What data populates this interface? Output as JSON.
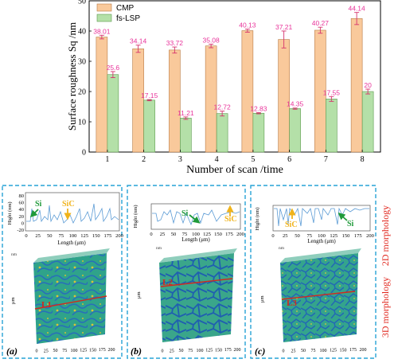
{
  "chart_data": {
    "type": "bar",
    "xlabel": "Number of scan /time",
    "ylabel": "Surface roughness Sq /nm",
    "ylim": [
      0,
      50
    ],
    "yticks": [
      0,
      10,
      20,
      30,
      40,
      50
    ],
    "categories": [
      "1",
      "2",
      "3",
      "4",
      "5",
      "6",
      "7",
      "8"
    ],
    "series": [
      {
        "name": "CMP",
        "values": [
          38.01,
          34.14,
          33.72,
          35.08,
          40.13,
          37.21,
          40.27,
          44.14
        ],
        "labels": [
          "38.01",
          "34.14",
          "33.72",
          "35.08",
          "40.13",
          "37.21",
          "40.27",
          "44.14"
        ],
        "errors": [
          0.6,
          1.2,
          1.0,
          0.6,
          0.5,
          2.8,
          1.0,
          2.0
        ],
        "color": "#f9c99b"
      },
      {
        "name": "fs-LSP",
        "values": [
          25.6,
          17.15,
          11.21,
          12.72,
          12.83,
          14.35,
          17.55,
          20
        ],
        "labels": [
          "25.6",
          "17.15",
          "11.21",
          "12.72",
          "12.83",
          "14.35",
          "17.55",
          "20"
        ],
        "errors": [
          1.0,
          0.2,
          0.4,
          0.8,
          0.2,
          0.2,
          0.8,
          0.8
        ],
        "color": "#b4e0a8"
      }
    ],
    "label_color": "#e8339a",
    "legend": "top-left"
  },
  "panels": [
    {
      "tag": "(a)",
      "line": "L1",
      "annot_green": "Si",
      "annot_yellow": "SiC",
      "plot_ylabel": "Hight (nm)",
      "plot_xlabel": "Length (μm)",
      "yticks": [
        "80",
        "60",
        "40",
        "20",
        "0",
        "-20"
      ],
      "xticks": [
        "0",
        "25",
        "50",
        "75",
        "100",
        "125",
        "150",
        "175",
        "200"
      ],
      "unit_nm": "nm",
      "axis_um": "μm"
    },
    {
      "tag": "(b)",
      "line": "L2",
      "annot_green": "Si",
      "annot_yellow": "SiC",
      "plot_ylabel": "Hight (nm)",
      "plot_xlabel": "Length (μm)",
      "yticks": [],
      "xticks": [
        "0",
        "25",
        "50",
        "75",
        "100",
        "125",
        "150",
        "175",
        "200"
      ],
      "unit_nm": "nm",
      "axis_um": "μm"
    },
    {
      "tag": "(c)",
      "line": "L3",
      "annot_green": "Si",
      "annot_yellow": "SiC",
      "plot_ylabel": "Hight (nm)",
      "plot_xlabel": "Length (μm)",
      "yticks": [],
      "xticks": [
        "0",
        "25",
        "50",
        "75",
        "100",
        "125",
        "150",
        "175",
        "200"
      ],
      "unit_nm": "nm",
      "axis_um": "μm"
    }
  ],
  "side_labels": {
    "top": "2D morphology",
    "bottom": "3D morphology"
  }
}
